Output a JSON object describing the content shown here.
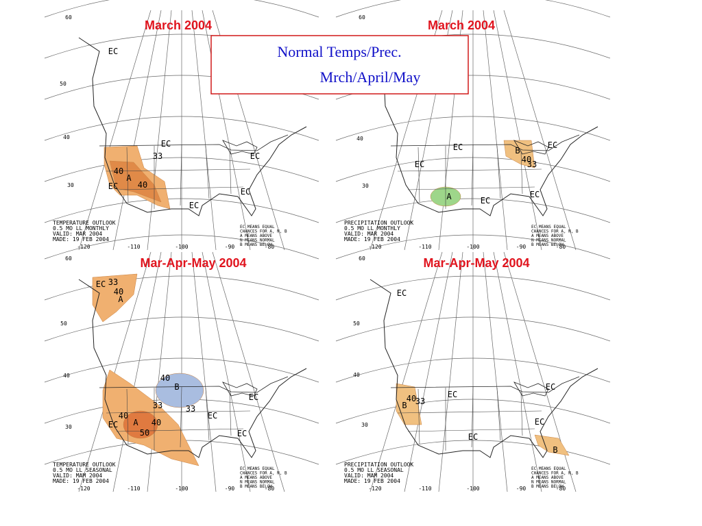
{
  "title_box": {
    "lines": [
      "Normal Temps/Prec.",
      "Mrch/April/May"
    ]
  },
  "maps": [
    {
      "title": "March 2004",
      "lat_labels": [
        "60",
        "50",
        "40",
        "30"
      ],
      "lon_labels": [
        "-120",
        "-110",
        "-100",
        "-90",
        "-80"
      ],
      "outlook": [
        "TEMPERATURE OUTLOOK",
        "0.5 MO LL MONTHLY",
        "VALID: MAR 2004",
        "MADE: 19 FEB 2004"
      ],
      "legend": [
        "EC MEANS EQUAL",
        "CHANCES FOR A, N, B",
        "A MEANS ABOVE",
        "N MEANS NORMAL",
        "B MEANS BELOW"
      ],
      "labels": [
        "EC",
        "EC",
        "EC",
        "EC",
        "EC",
        "EC",
        "A",
        "40",
        "40",
        "33"
      ]
    },
    {
      "title": "March 2004",
      "lat_labels": [
        "60",
        "40",
        "30"
      ],
      "lon_labels": [
        "-120",
        "-110",
        "-100",
        "-90",
        "-80"
      ],
      "outlook": [
        "PRECIPITATION OUTLOOK",
        "0.5 MO LL MONTHLY",
        "VALID: MAR 2004",
        "MADE: 19 FEB 2004"
      ],
      "legend": [
        "EC MEANS EQUAL",
        "CHANCES FOR A, N, B",
        "A MEANS ABOVE",
        "N MEANS NORMAL",
        "B MEANS BELOW"
      ],
      "labels": [
        "EC",
        "EC",
        "EC",
        "B",
        "40",
        "33",
        "A",
        "EC",
        "EC"
      ]
    },
    {
      "title": "Mar-Apr-May 2004",
      "lat_labels": [
        "60",
        "50",
        "40",
        "30"
      ],
      "lon_labels": [
        "-120",
        "-110",
        "-100",
        "-90",
        "-80"
      ],
      "outlook": [
        "TEMPERATURE OUTLOOK",
        "0.5 MO LL SEASONAL",
        "VALID: MAM 2004",
        "MADE: 19 FEB 2004"
      ],
      "legend": [
        "EC MEANS EQUAL",
        "CHANCES FOR A, N, B",
        "A MEANS ABOVE",
        "N MEANS NORMAL",
        "B MEANS BELOW"
      ],
      "labels": [
        "EC",
        "33",
        "40",
        "A",
        "B",
        "40",
        "33",
        "33",
        "EC",
        "EC",
        "EC",
        "40",
        "A",
        "40",
        "50",
        "EC"
      ]
    },
    {
      "title": "Mar-Apr-May 2004",
      "lat_labels": [
        "60",
        "50",
        "40",
        "30"
      ],
      "lon_labels": [
        "-120",
        "-110",
        "-100",
        "-90",
        "-80"
      ],
      "outlook": [
        "PRECIPITATION OUTLOOK",
        "0.5 MO LL SEASONAL",
        "VALID: MAM 2004",
        "MADE: 19 FEB 2004"
      ],
      "legend": [
        "EC MEANS EQUAL",
        "CHANCES FOR A, N, B",
        "A MEANS ABOVE",
        "N MEANS NORMAL",
        "B MEANS BELOW"
      ],
      "labels": [
        "EC",
        "EC",
        "EC",
        "B",
        "40",
        "33",
        "EC",
        "EC",
        "B"
      ]
    }
  ]
}
